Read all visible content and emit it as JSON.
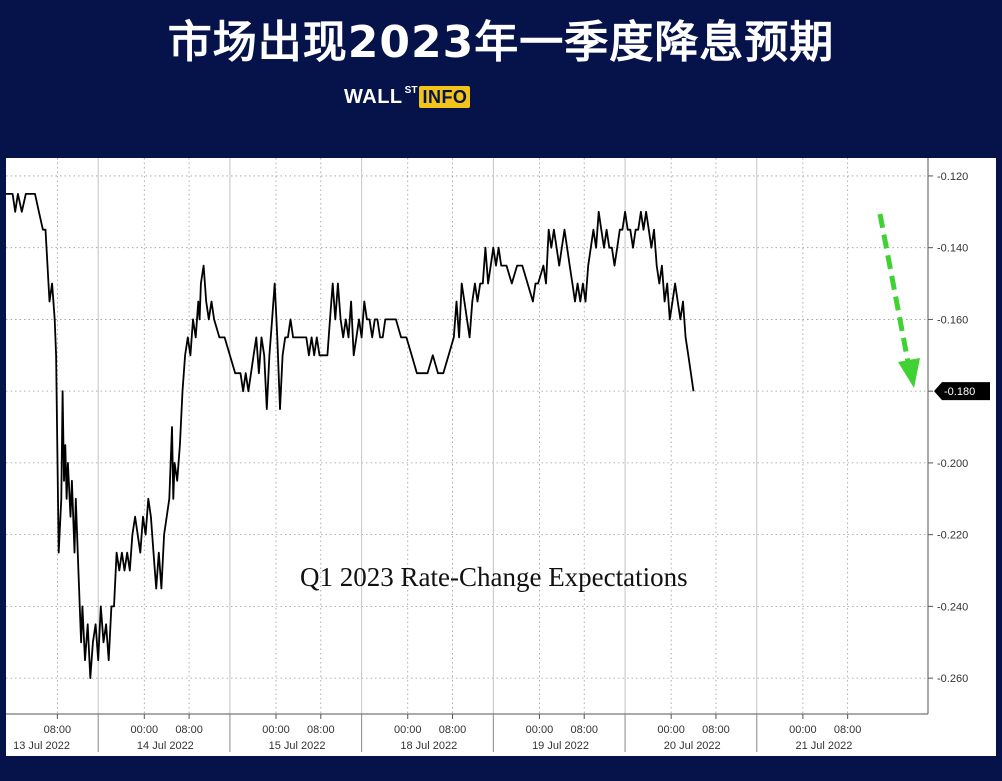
{
  "header": {
    "title": "市场出现2023年一季度降息预期",
    "brand": {
      "wall": "WALL",
      "st": "ST",
      "info": "INFO"
    }
  },
  "chart_data": {
    "type": "line",
    "title": "",
    "annotation": "Q1 2023 Rate-Change Expectations",
    "xlabel": "",
    "ylabel": "",
    "x_range": [
      0,
      7
    ],
    "ylim": [
      -0.27,
      -0.115
    ],
    "y_ticks": [
      -0.12,
      -0.14,
      -0.16,
      -0.18,
      -0.2,
      -0.22,
      -0.24,
      -0.26
    ],
    "y_tick_labels": [
      "-0.120",
      "-0.140",
      "-0.160",
      "-0.180",
      "-0.200",
      "-0.220",
      "-0.240",
      "-0.260"
    ],
    "last_value": -0.18,
    "last_value_label": "-0.180",
    "x_tick_labels": [
      {
        "x": 0.39,
        "label": "08:00"
      },
      {
        "x": 1.05,
        "label": "00:00"
      },
      {
        "x": 1.39,
        "label": "08:00"
      },
      {
        "x": 2.05,
        "label": "00:00"
      },
      {
        "x": 2.39,
        "label": "08:00"
      },
      {
        "x": 3.05,
        "label": "00:00"
      },
      {
        "x": 3.39,
        "label": "08:00"
      },
      {
        "x": 4.05,
        "label": "00:00"
      },
      {
        "x": 4.39,
        "label": "08:00"
      },
      {
        "x": 5.05,
        "label": "00:00"
      },
      {
        "x": 5.39,
        "label": "08:00"
      },
      {
        "x": 6.05,
        "label": "00:00"
      },
      {
        "x": 6.39,
        "label": "08:00"
      }
    ],
    "x_date_labels": [
      {
        "x": 0.27,
        "label": "13 Jul 2022"
      },
      {
        "x": 1.21,
        "label": "14 Jul 2022"
      },
      {
        "x": 2.21,
        "label": "15 Jul 2022"
      },
      {
        "x": 3.21,
        "label": "18 Jul 2022"
      },
      {
        "x": 4.21,
        "label": "19 Jul 2022"
      },
      {
        "x": 5.21,
        "label": "20 Jul 2022"
      },
      {
        "x": 6.21,
        "label": "21 Jul 2022"
      }
    ],
    "day_boundaries": [
      0.7,
      1.7,
      2.7,
      3.7,
      4.7,
      5.7
    ],
    "series": [
      {
        "color": "#000000",
        "points": [
          [
            0.0,
            -0.125
          ],
          [
            0.05,
            -0.125
          ],
          [
            0.07,
            -0.13
          ],
          [
            0.09,
            -0.125
          ],
          [
            0.12,
            -0.13
          ],
          [
            0.15,
            -0.125
          ],
          [
            0.22,
            -0.125
          ],
          [
            0.25,
            -0.13
          ],
          [
            0.28,
            -0.135
          ],
          [
            0.3,
            -0.135
          ],
          [
            0.33,
            -0.155
          ],
          [
            0.35,
            -0.15
          ],
          [
            0.37,
            -0.16
          ],
          [
            0.38,
            -0.17
          ],
          [
            0.4,
            -0.225
          ],
          [
            0.42,
            -0.21
          ],
          [
            0.43,
            -0.18
          ],
          [
            0.44,
            -0.205
          ],
          [
            0.45,
            -0.195
          ],
          [
            0.46,
            -0.21
          ],
          [
            0.47,
            -0.2
          ],
          [
            0.49,
            -0.215
          ],
          [
            0.5,
            -0.205
          ],
          [
            0.52,
            -0.225
          ],
          [
            0.53,
            -0.21
          ],
          [
            0.55,
            -0.23
          ],
          [
            0.57,
            -0.25
          ],
          [
            0.58,
            -0.24
          ],
          [
            0.6,
            -0.255
          ],
          [
            0.62,
            -0.245
          ],
          [
            0.64,
            -0.26
          ],
          [
            0.66,
            -0.25
          ],
          [
            0.68,
            -0.245
          ],
          [
            0.7,
            -0.255
          ],
          [
            0.72,
            -0.24
          ],
          [
            0.74,
            -0.25
          ],
          [
            0.76,
            -0.245
          ],
          [
            0.78,
            -0.255
          ],
          [
            0.8,
            -0.24
          ],
          [
            0.82,
            -0.24
          ],
          [
            0.84,
            -0.225
          ],
          [
            0.86,
            -0.23
          ],
          [
            0.88,
            -0.225
          ],
          [
            0.9,
            -0.23
          ],
          [
            0.92,
            -0.225
          ],
          [
            0.94,
            -0.23
          ],
          [
            0.96,
            -0.22
          ],
          [
            0.98,
            -0.215
          ],
          [
            1.0,
            -0.22
          ],
          [
            1.02,
            -0.225
          ],
          [
            1.04,
            -0.215
          ],
          [
            1.06,
            -0.22
          ],
          [
            1.08,
            -0.21
          ],
          [
            1.1,
            -0.215
          ],
          [
            1.12,
            -0.225
          ],
          [
            1.14,
            -0.235
          ],
          [
            1.16,
            -0.225
          ],
          [
            1.18,
            -0.235
          ],
          [
            1.2,
            -0.22
          ],
          [
            1.22,
            -0.215
          ],
          [
            1.24,
            -0.21
          ],
          [
            1.26,
            -0.19
          ],
          [
            1.27,
            -0.21
          ],
          [
            1.28,
            -0.2
          ],
          [
            1.3,
            -0.205
          ],
          [
            1.32,
            -0.195
          ],
          [
            1.34,
            -0.18
          ],
          [
            1.36,
            -0.17
          ],
          [
            1.38,
            -0.165
          ],
          [
            1.4,
            -0.17
          ],
          [
            1.42,
            -0.16
          ],
          [
            1.44,
            -0.165
          ],
          [
            1.46,
            -0.155
          ],
          [
            1.47,
            -0.16
          ],
          [
            1.48,
            -0.15
          ],
          [
            1.5,
            -0.145
          ],
          [
            1.52,
            -0.155
          ],
          [
            1.54,
            -0.16
          ],
          [
            1.56,
            -0.155
          ],
          [
            1.58,
            -0.16
          ],
          [
            1.62,
            -0.165
          ],
          [
            1.66,
            -0.165
          ],
          [
            1.7,
            -0.17
          ],
          [
            1.74,
            -0.175
          ],
          [
            1.78,
            -0.175
          ],
          [
            1.8,
            -0.18
          ],
          [
            1.82,
            -0.175
          ],
          [
            1.84,
            -0.18
          ],
          [
            1.86,
            -0.175
          ],
          [
            1.88,
            -0.17
          ],
          [
            1.9,
            -0.165
          ],
          [
            1.92,
            -0.175
          ],
          [
            1.94,
            -0.165
          ],
          [
            1.96,
            -0.17
          ],
          [
            1.98,
            -0.185
          ],
          [
            2.0,
            -0.17
          ],
          [
            2.02,
            -0.16
          ],
          [
            2.04,
            -0.15
          ],
          [
            2.06,
            -0.165
          ],
          [
            2.08,
            -0.185
          ],
          [
            2.1,
            -0.17
          ],
          [
            2.12,
            -0.165
          ],
          [
            2.14,
            -0.165
          ],
          [
            2.16,
            -0.16
          ],
          [
            2.18,
            -0.165
          ],
          [
            2.2,
            -0.165
          ],
          [
            2.24,
            -0.165
          ],
          [
            2.28,
            -0.165
          ],
          [
            2.3,
            -0.17
          ],
          [
            2.32,
            -0.165
          ],
          [
            2.34,
            -0.17
          ],
          [
            2.36,
            -0.165
          ],
          [
            2.38,
            -0.17
          ],
          [
            2.4,
            -0.17
          ],
          [
            2.42,
            -0.17
          ],
          [
            2.44,
            -0.17
          ],
          [
            2.46,
            -0.16
          ],
          [
            2.48,
            -0.15
          ],
          [
            2.5,
            -0.16
          ],
          [
            2.52,
            -0.15
          ],
          [
            2.54,
            -0.16
          ],
          [
            2.56,
            -0.165
          ],
          [
            2.58,
            -0.16
          ],
          [
            2.6,
            -0.165
          ],
          [
            2.62,
            -0.155
          ],
          [
            2.64,
            -0.17
          ],
          [
            2.66,
            -0.165
          ],
          [
            2.68,
            -0.16
          ],
          [
            2.7,
            -0.165
          ],
          [
            2.72,
            -0.155
          ],
          [
            2.74,
            -0.16
          ],
          [
            2.76,
            -0.16
          ],
          [
            2.78,
            -0.165
          ],
          [
            2.8,
            -0.16
          ],
          [
            2.82,
            -0.16
          ],
          [
            2.84,
            -0.165
          ],
          [
            2.86,
            -0.165
          ],
          [
            2.88,
            -0.16
          ],
          [
            2.92,
            -0.16
          ],
          [
            2.96,
            -0.16
          ],
          [
            3.0,
            -0.165
          ],
          [
            3.04,
            -0.165
          ],
          [
            3.08,
            -0.17
          ],
          [
            3.12,
            -0.175
          ],
          [
            3.16,
            -0.175
          ],
          [
            3.2,
            -0.175
          ],
          [
            3.24,
            -0.17
          ],
          [
            3.28,
            -0.175
          ],
          [
            3.32,
            -0.175
          ],
          [
            3.36,
            -0.17
          ],
          [
            3.4,
            -0.165
          ],
          [
            3.42,
            -0.155
          ],
          [
            3.44,
            -0.165
          ],
          [
            3.46,
            -0.15
          ],
          [
            3.48,
            -0.155
          ],
          [
            3.5,
            -0.16
          ],
          [
            3.52,
            -0.165
          ],
          [
            3.54,
            -0.155
          ],
          [
            3.56,
            -0.15
          ],
          [
            3.58,
            -0.155
          ],
          [
            3.6,
            -0.15
          ],
          [
            3.62,
            -0.15
          ],
          [
            3.64,
            -0.14
          ],
          [
            3.66,
            -0.15
          ],
          [
            3.68,
            -0.145
          ],
          [
            3.7,
            -0.14
          ],
          [
            3.72,
            -0.145
          ],
          [
            3.74,
            -0.14
          ],
          [
            3.76,
            -0.145
          ],
          [
            3.8,
            -0.145
          ],
          [
            3.84,
            -0.15
          ],
          [
            3.88,
            -0.145
          ],
          [
            3.92,
            -0.145
          ],
          [
            3.96,
            -0.15
          ],
          [
            4.0,
            -0.155
          ],
          [
            4.02,
            -0.15
          ],
          [
            4.04,
            -0.15
          ],
          [
            4.08,
            -0.145
          ],
          [
            4.1,
            -0.15
          ],
          [
            4.12,
            -0.135
          ],
          [
            4.14,
            -0.14
          ],
          [
            4.16,
            -0.135
          ],
          [
            4.18,
            -0.14
          ],
          [
            4.2,
            -0.145
          ],
          [
            4.22,
            -0.14
          ],
          [
            4.24,
            -0.135
          ],
          [
            4.26,
            -0.14
          ],
          [
            4.28,
            -0.145
          ],
          [
            4.3,
            -0.15
          ],
          [
            4.32,
            -0.155
          ],
          [
            4.34,
            -0.15
          ],
          [
            4.36,
            -0.155
          ],
          [
            4.38,
            -0.15
          ],
          [
            4.4,
            -0.155
          ],
          [
            4.42,
            -0.145
          ],
          [
            4.44,
            -0.14
          ],
          [
            4.46,
            -0.135
          ],
          [
            4.48,
            -0.14
          ],
          [
            4.5,
            -0.13
          ],
          [
            4.52,
            -0.135
          ],
          [
            4.54,
            -0.14
          ],
          [
            4.56,
            -0.135
          ],
          [
            4.58,
            -0.14
          ],
          [
            4.6,
            -0.14
          ],
          [
            4.62,
            -0.145
          ],
          [
            4.64,
            -0.14
          ],
          [
            4.66,
            -0.135
          ],
          [
            4.68,
            -0.135
          ],
          [
            4.7,
            -0.13
          ],
          [
            4.72,
            -0.135
          ],
          [
            4.74,
            -0.135
          ],
          [
            4.76,
            -0.14
          ],
          [
            4.78,
            -0.135
          ],
          [
            4.8,
            -0.135
          ],
          [
            4.82,
            -0.13
          ],
          [
            4.84,
            -0.135
          ],
          [
            4.86,
            -0.13
          ],
          [
            4.88,
            -0.135
          ],
          [
            4.9,
            -0.14
          ],
          [
            4.92,
            -0.135
          ],
          [
            4.94,
            -0.145
          ],
          [
            4.96,
            -0.15
          ],
          [
            4.98,
            -0.145
          ],
          [
            5.0,
            -0.155
          ],
          [
            5.02,
            -0.15
          ],
          [
            5.04,
            -0.16
          ],
          [
            5.06,
            -0.155
          ],
          [
            5.08,
            -0.15
          ],
          [
            5.1,
            -0.155
          ],
          [
            5.12,
            -0.16
          ],
          [
            5.14,
            -0.155
          ],
          [
            5.16,
            -0.165
          ],
          [
            5.18,
            -0.17
          ],
          [
            5.2,
            -0.175
          ],
          [
            5.22,
            -0.18
          ]
        ]
      }
    ]
  }
}
